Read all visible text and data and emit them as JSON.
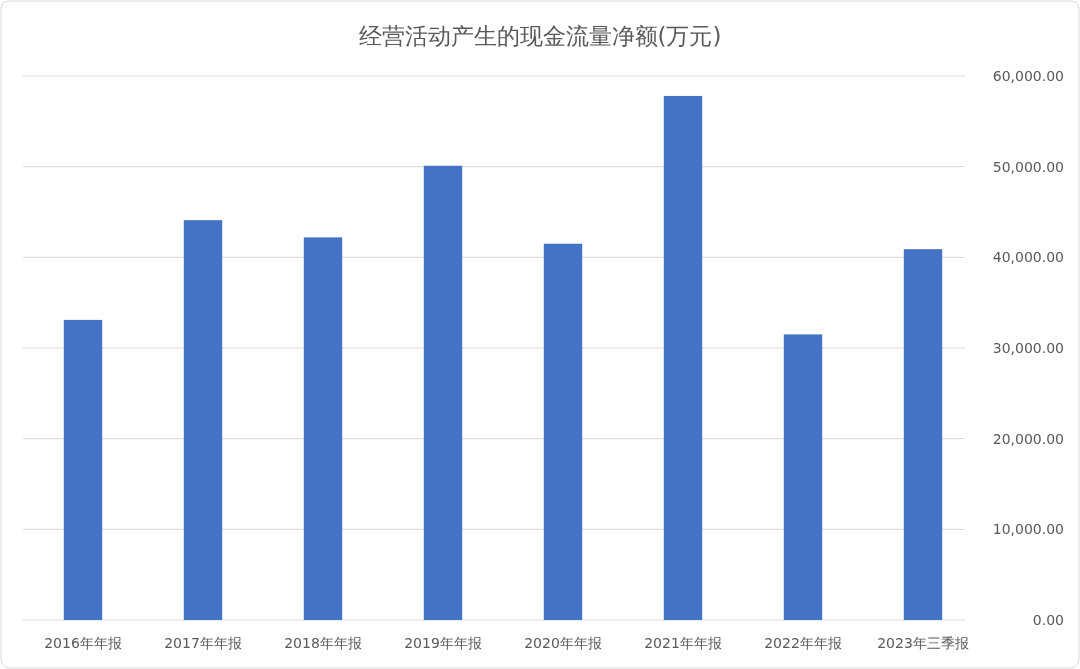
{
  "chart_data": {
    "type": "bar",
    "title": "经营活动产生的现金流量净额(万元)",
    "categories": [
      "2016年年报",
      "2017年年报",
      "2018年年报",
      "2019年年报",
      "2020年年报",
      "2021年年报",
      "2022年年报",
      "2023年三季报"
    ],
    "values": [
      33100,
      44100,
      42200,
      50100,
      41500,
      57800,
      31500,
      40900
    ],
    "color": "#4472c4",
    "ylim": [
      0,
      60000
    ],
    "yticks": [
      {
        "value": 0,
        "label": "0.00"
      },
      {
        "value": 10000,
        "label": "10,000.00"
      },
      {
        "value": 20000,
        "label": "20,000.00"
      },
      {
        "value": 30000,
        "label": "30,000.00"
      },
      {
        "value": 40000,
        "label": "40,000.00"
      },
      {
        "value": 50000,
        "label": "50,000.00"
      },
      {
        "value": 60000,
        "label": "60,000.00"
      }
    ],
    "grid": "y"
  }
}
